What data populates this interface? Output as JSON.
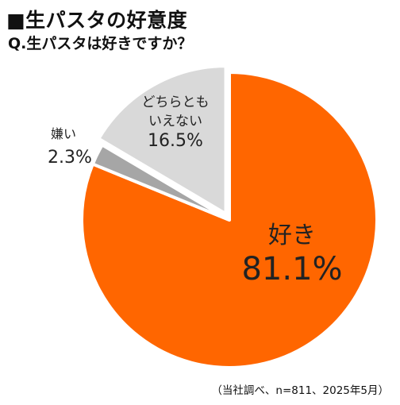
{
  "header": {
    "title": "■生パスタの好意度",
    "question": "Q.生パスタは好きですか？"
  },
  "chart_data": {
    "type": "pie",
    "title": "■生パスタの好意度",
    "subtitle": "Q.生パスタは好きですか？",
    "slices": [
      {
        "label": "好き",
        "value": 81.1,
        "value_label": "81.1%",
        "color": "#ff6600"
      },
      {
        "label": "嫌い",
        "value": 2.3,
        "value_label": "2.3%",
        "color": "#a6a6a6"
      },
      {
        "label": "どちらとも\nいえない",
        "label_lines": [
          "どちらとも",
          "いえない"
        ],
        "value": 16.5,
        "value_label": "16.5%",
        "color": "#d9d9d9"
      }
    ],
    "start_angle_deg": 0,
    "direction": "clockwise",
    "exploded_slice": "どちらとも\nいえない"
  },
  "footer": {
    "note": "（当社調べ、n=811、2025年5月）"
  }
}
